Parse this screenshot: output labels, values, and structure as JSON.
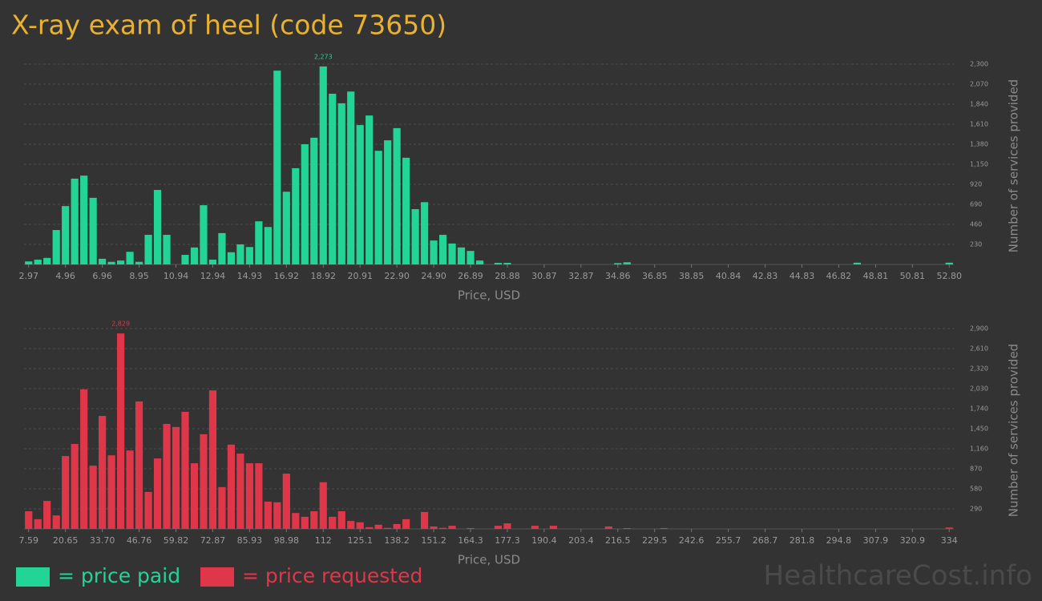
{
  "title": "X-ray exam of heel (code 73650)",
  "legend": [
    {
      "label": "= price paid",
      "color": "#22d496"
    },
    {
      "label": "= price requested",
      "color": "#e0364a"
    }
  ],
  "watermark": "HealthcareCost.info",
  "chart_data": [
    {
      "type": "bar",
      "color": "#22d496",
      "grid": true,
      "xlabel": "Price, USD",
      "ylabel": "Number of services provided",
      "ylim": [
        0,
        2300
      ],
      "yticks": [
        230,
        460,
        690,
        920,
        {
          "value": 1150,
          "label": "1,150"
        },
        {
          "value": 1380,
          "label": "1,380"
        },
        {
          "value": 1610,
          "label": "1,610"
        },
        {
          "value": 1840,
          "label": "1,840"
        },
        {
          "value": 2070,
          "label": "2,070"
        },
        {
          "value": 2300,
          "label": "2,300"
        }
      ],
      "categories": [
        "2.97",
        null,
        null,
        null,
        "4.96",
        null,
        null,
        null,
        "6.96",
        null,
        null,
        null,
        "8.95",
        null,
        null,
        null,
        "10.94",
        null,
        null,
        null,
        "12.94",
        null,
        null,
        null,
        "14.93",
        null,
        null,
        null,
        "16.92",
        null,
        null,
        null,
        "18.92",
        null,
        null,
        null,
        "20.91",
        null,
        null,
        null,
        "22.90",
        null,
        null,
        null,
        "24.90",
        null,
        null,
        null,
        "26.89",
        null,
        null,
        null,
        "28.88",
        null,
        null,
        null,
        "30.87",
        null,
        null,
        null,
        "32.87",
        null,
        null,
        null,
        "34.86",
        null,
        null,
        null,
        "36.85",
        null,
        null,
        null,
        "38.85",
        null,
        null,
        null,
        "40.84",
        null,
        null,
        null,
        "42.83",
        null,
        null,
        null,
        "44.83",
        null,
        null,
        null,
        "46.82",
        null,
        null,
        null,
        "48.81",
        null,
        null,
        null,
        "50.81",
        null,
        null,
        null,
        "52.80"
      ],
      "values": [
        35,
        55,
        75,
        395,
        670,
        985,
        1020,
        765,
        65,
        30,
        45,
        145,
        30,
        340,
        855,
        340,
        0,
        110,
        195,
        680,
        55,
        360,
        140,
        230,
        200,
        495,
        430,
        2225,
        835,
        1105,
        1380,
        1455,
        2273,
        1960,
        1850,
        1985,
        1600,
        1710,
        1305,
        1425,
        1565,
        1225,
        635,
        715,
        275,
        340,
        240,
        195,
        155,
        45,
        0,
        18,
        18,
        0,
        0,
        0,
        0,
        0,
        0,
        0,
        0,
        0,
        0,
        0,
        15,
        25,
        0,
        0,
        0,
        0,
        0,
        0,
        0,
        0,
        0,
        0,
        0,
        0,
        0,
        0,
        0,
        0,
        0,
        0,
        0,
        0,
        0,
        0,
        0,
        0,
        20,
        0,
        0,
        0,
        0,
        0,
        0,
        0,
        0,
        0,
        20
      ],
      "value_labels": [
        null,
        null,
        null,
        null,
        null,
        null,
        null,
        null,
        null,
        null,
        null,
        null,
        null,
        null,
        null,
        null,
        null,
        null,
        null,
        null,
        null,
        null,
        null,
        null,
        null,
        null,
        null,
        null,
        null,
        null,
        null,
        null,
        "2,273",
        null,
        null,
        null,
        null,
        null,
        null,
        null,
        null,
        null,
        null,
        null,
        null,
        null,
        null,
        null,
        null,
        null,
        null,
        null,
        null,
        null,
        null,
        null,
        null,
        null,
        null,
        null,
        null,
        null,
        null,
        null,
        null,
        null,
        null,
        null,
        null,
        null,
        null,
        null,
        null,
        null,
        null,
        null,
        null,
        null,
        null,
        null,
        null,
        null,
        null,
        null,
        null,
        null,
        null,
        null,
        null,
        null,
        null,
        null,
        null,
        null,
        null,
        null,
        null,
        null,
        null,
        null,
        null
      ]
    },
    {
      "type": "bar",
      "color": "#e0364a",
      "grid": true,
      "xlabel": "Price, USD",
      "ylabel": "Number of services provided",
      "ylim": [
        0,
        2900
      ],
      "yticks": [
        290,
        580,
        870,
        {
          "value": 1160,
          "label": "1,160"
        },
        {
          "value": 1450,
          "label": "1,450"
        },
        {
          "value": 1740,
          "label": "1,740"
        },
        {
          "value": 2030,
          "label": "2,030"
        },
        {
          "value": 2320,
          "label": "2,320"
        },
        {
          "value": 2610,
          "label": "2,610"
        },
        {
          "value": 2900,
          "label": "2,900"
        }
      ],
      "categories": [
        "7.59",
        null,
        null,
        null,
        "20.65",
        null,
        null,
        null,
        "33.70",
        null,
        null,
        null,
        "46.76",
        null,
        null,
        null,
        "59.82",
        null,
        null,
        null,
        "72.87",
        null,
        null,
        null,
        "85.93",
        null,
        null,
        null,
        "98.98",
        null,
        null,
        null,
        "112",
        null,
        null,
        null,
        "125.1",
        null,
        null,
        null,
        "138.2",
        null,
        null,
        null,
        "151.2",
        null,
        null,
        null,
        "164.3",
        null,
        null,
        null,
        "177.3",
        null,
        null,
        null,
        "190.4",
        null,
        null,
        null,
        "203.4",
        null,
        null,
        null,
        "216.5",
        null,
        null,
        null,
        "229.5",
        null,
        null,
        null,
        "242.6",
        null,
        null,
        null,
        "255.7",
        null,
        null,
        null,
        "268.7",
        null,
        null,
        null,
        "281.8",
        null,
        null,
        null,
        "294.8",
        null,
        null,
        null,
        "307.9",
        null,
        null,
        null,
        "320.9",
        null,
        null,
        null,
        "334"
      ],
      "values": [
        255,
        140,
        405,
        195,
        1055,
        1230,
        2020,
        915,
        1635,
        1065,
        2829,
        1135,
        1845,
        535,
        1020,
        1520,
        1475,
        1695,
        950,
        1370,
        2005,
        605,
        1220,
        1090,
        950,
        950,
        395,
        385,
        800,
        230,
        175,
        255,
        675,
        175,
        255,
        115,
        95,
        25,
        60,
        15,
        70,
        140,
        0,
        245,
        35,
        15,
        45,
        0,
        12,
        0,
        0,
        45,
        80,
        0,
        0,
        45,
        0,
        45,
        0,
        0,
        0,
        0,
        0,
        35,
        0,
        12,
        0,
        0,
        0,
        12,
        0,
        0,
        0,
        0,
        0,
        0,
        0,
        0,
        0,
        0,
        0,
        0,
        0,
        0,
        0,
        0,
        0,
        0,
        0,
        0,
        0,
        0,
        0,
        0,
        0,
        0,
        0,
        0,
        0,
        0,
        20
      ],
      "value_labels": [
        null,
        null,
        null,
        null,
        null,
        null,
        null,
        null,
        null,
        null,
        "2,829",
        null,
        null,
        null,
        null,
        null,
        null,
        null,
        null,
        null,
        null,
        null,
        null,
        null,
        null,
        null,
        null,
        null,
        null,
        null,
        null,
        null,
        null,
        null,
        null,
        null,
        null,
        null,
        null,
        null,
        null,
        null,
        null,
        null,
        null,
        null,
        null,
        null,
        null,
        null,
        null,
        null,
        null,
        null,
        null,
        null,
        null,
        null,
        null,
        null,
        null,
        null,
        null,
        null,
        null,
        null,
        null,
        null,
        null,
        null,
        null,
        null,
        null,
        null,
        null,
        null,
        null,
        null,
        null,
        null,
        null,
        null,
        null,
        null,
        null,
        null,
        null,
        null,
        null,
        null,
        null,
        null,
        null,
        null,
        null,
        null,
        null,
        null,
        null,
        null,
        null
      ]
    }
  ]
}
